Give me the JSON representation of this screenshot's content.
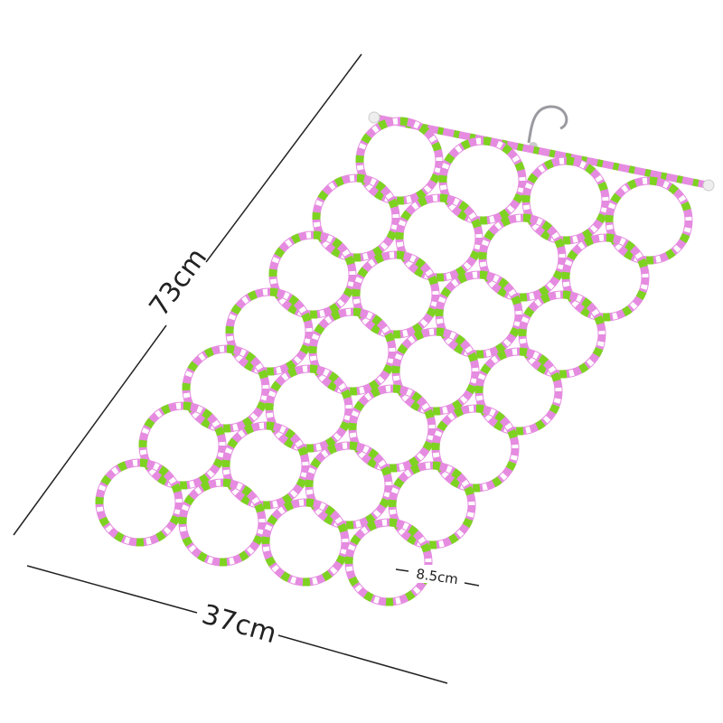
{
  "dimensions": {
    "height_label": "73cm",
    "width_label": "37cm",
    "ring_label": "8.5cm"
  },
  "product": {
    "rows": 7,
    "columns": 4,
    "rope_colors": [
      "#e58be0",
      "#7ed321",
      "#ffffff"
    ],
    "bar_color": "#f0f0f0",
    "hook_color": "#9a9aa0"
  }
}
